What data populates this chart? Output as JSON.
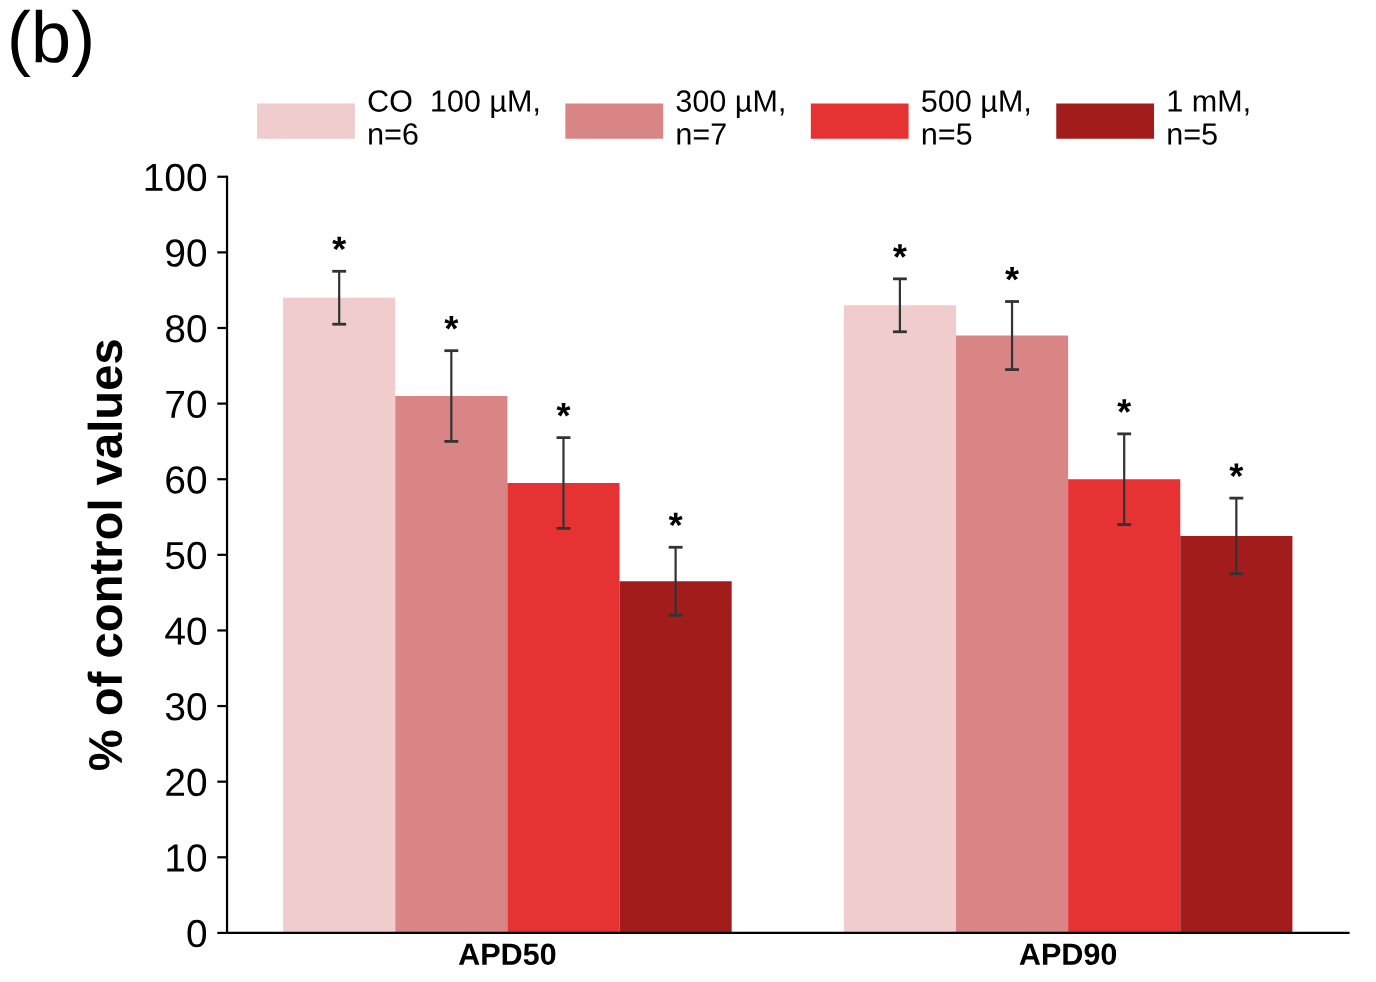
{
  "chart_data": {
    "type": "bar",
    "title": "(b)",
    "ylabel": "% of control values",
    "categories": [
      "APD50",
      "APD90"
    ],
    "series": [
      {
        "name": "CO  100 µM,\nn=6",
        "color": "#f0cccc",
        "values": [
          84,
          83
        ],
        "errors": [
          3.5,
          3.5
        ],
        "value_labels": [
          "*",
          "*"
        ]
      },
      {
        "name": "300 µM,\nn=7",
        "color": "#d98585",
        "values": [
          71,
          79
        ],
        "errors": [
          6,
          4.5
        ],
        "value_labels": [
          "*",
          "*"
        ]
      },
      {
        "name": "500 µM,\nn=5",
        "color": "#e63232",
        "values": [
          59.5,
          60
        ],
        "errors": [
          6,
          6
        ],
        "value_labels": [
          "*",
          "*"
        ]
      },
      {
        "name": "1 mM,\nn=5",
        "color": "#a31c1c",
        "values": [
          46.5,
          52.5
        ],
        "errors": [
          4.5,
          5
        ],
        "value_labels": [
          "*",
          "*"
        ]
      }
    ],
    "ylim": [
      0,
      100
    ],
    "yticks": [
      0,
      10,
      20,
      30,
      40,
      50,
      60,
      70,
      80,
      90,
      100
    ],
    "grid": false,
    "legend": "top"
  }
}
